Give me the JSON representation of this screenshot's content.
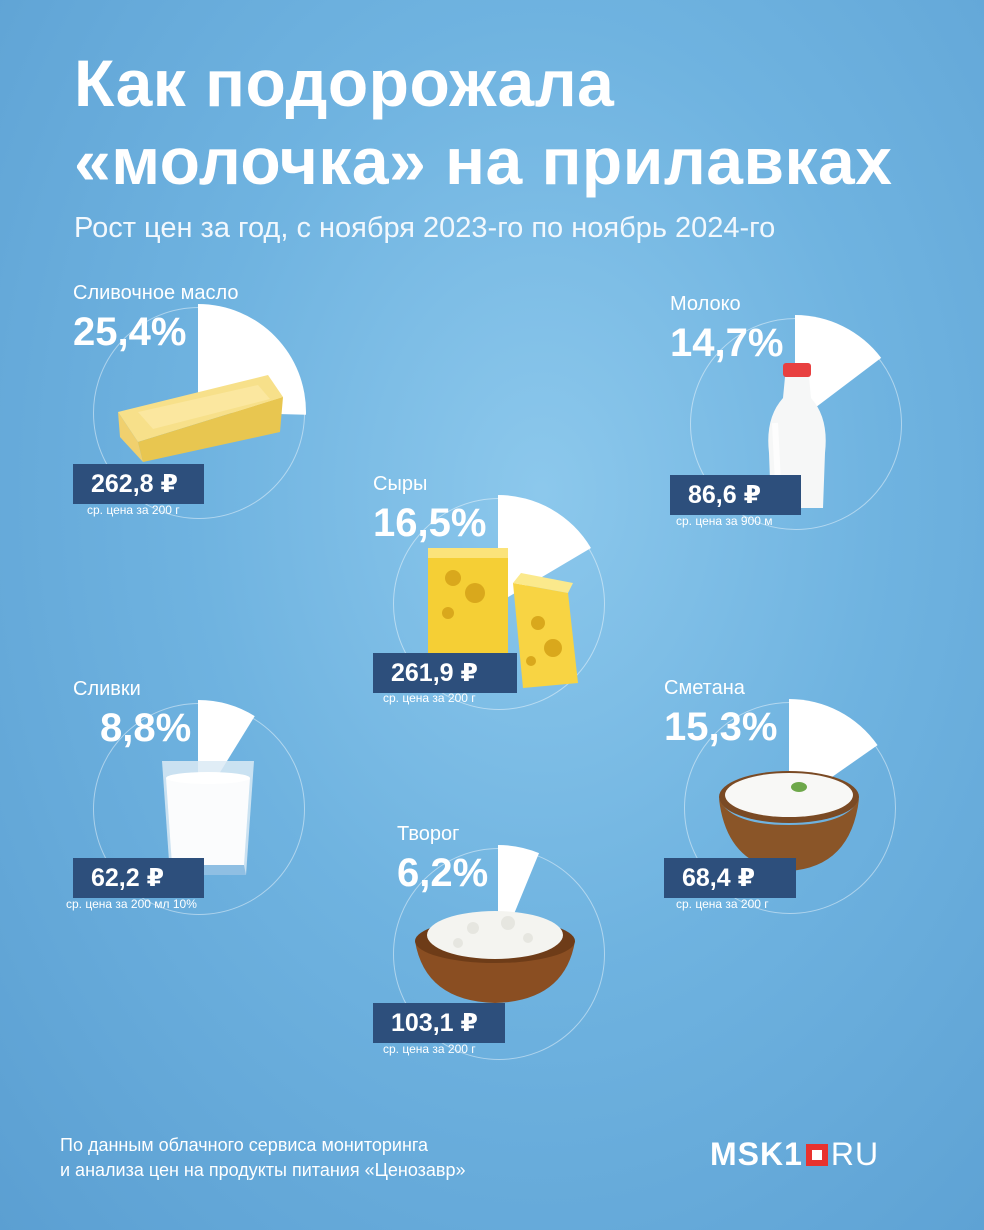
{
  "header": {
    "title_line1": "Как подорожала",
    "title_line2": "«молочка» на прилавках",
    "subtitle": "Рост цен за год, с ноября 2023-го по ноябрь 2024-го"
  },
  "chart_data": {
    "type": "pie",
    "unit": "%",
    "items": [
      {
        "name": "Сливочное масло",
        "pct_label": "25,4%",
        "value": 25.4,
        "price": "262,8 ₽",
        "note": "ср. цена за 200 г"
      },
      {
        "name": "Молоко",
        "pct_label": "14,7%",
        "value": 14.7,
        "price": "86,6 ₽",
        "note": "ср. цена за 900 м"
      },
      {
        "name": "Сыры",
        "pct_label": "16,5%",
        "value": 16.5,
        "price": "261,9 ₽",
        "note": "ср. цена за 200 г"
      },
      {
        "name": "Сливки",
        "pct_label": "8,8%",
        "value": 8.8,
        "price": "62,2 ₽",
        "note": "ср. цена за 200 мл 10%"
      },
      {
        "name": "Сметана",
        "pct_label": "15,3%",
        "value": 15.3,
        "price": "68,4 ₽",
        "note": "ср. цена за 200 г"
      },
      {
        "name": "Творог",
        "pct_label": "6,2%",
        "value": 6.2,
        "price": "103,1 ₽",
        "note": "ср. цена за 200 г"
      }
    ]
  },
  "footer": {
    "line1": "По данным облачного сервиса мониторинга",
    "line2": "и анализа цен на продукты питания «Ценозавр»",
    "logo_main": "MSK1",
    "logo_suffix": "RU",
    "logo_color": "#e8322e"
  },
  "colors": {
    "background": "#6fb3e0",
    "price_box": "#2d4f7c",
    "sector": "#ffffff"
  }
}
